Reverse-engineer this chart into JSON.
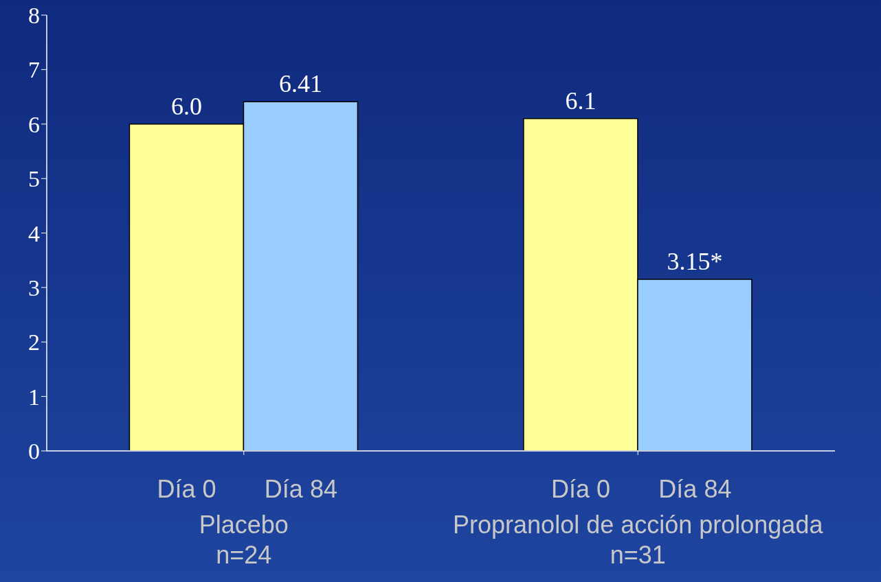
{
  "chart_data": {
    "type": "bar",
    "categories": [
      "Placebo\nn=24",
      "Propranolol de acción prolongada\nn=31"
    ],
    "series": [
      {
        "name": "Día 0",
        "color": "#ffff99",
        "values": [
          6.0,
          6.1
        ],
        "value_labels": [
          "6.0",
          "6.1"
        ]
      },
      {
        "name": "Día 84",
        "color": "#99ccff",
        "values": [
          6.41,
          3.15
        ],
        "value_labels": [
          "6.41",
          "3.15*"
        ]
      }
    ],
    "ylim": [
      0,
      8
    ],
    "yticks": [
      0,
      1,
      2,
      3,
      4,
      5,
      6,
      7,
      8
    ],
    "grid": false
  }
}
